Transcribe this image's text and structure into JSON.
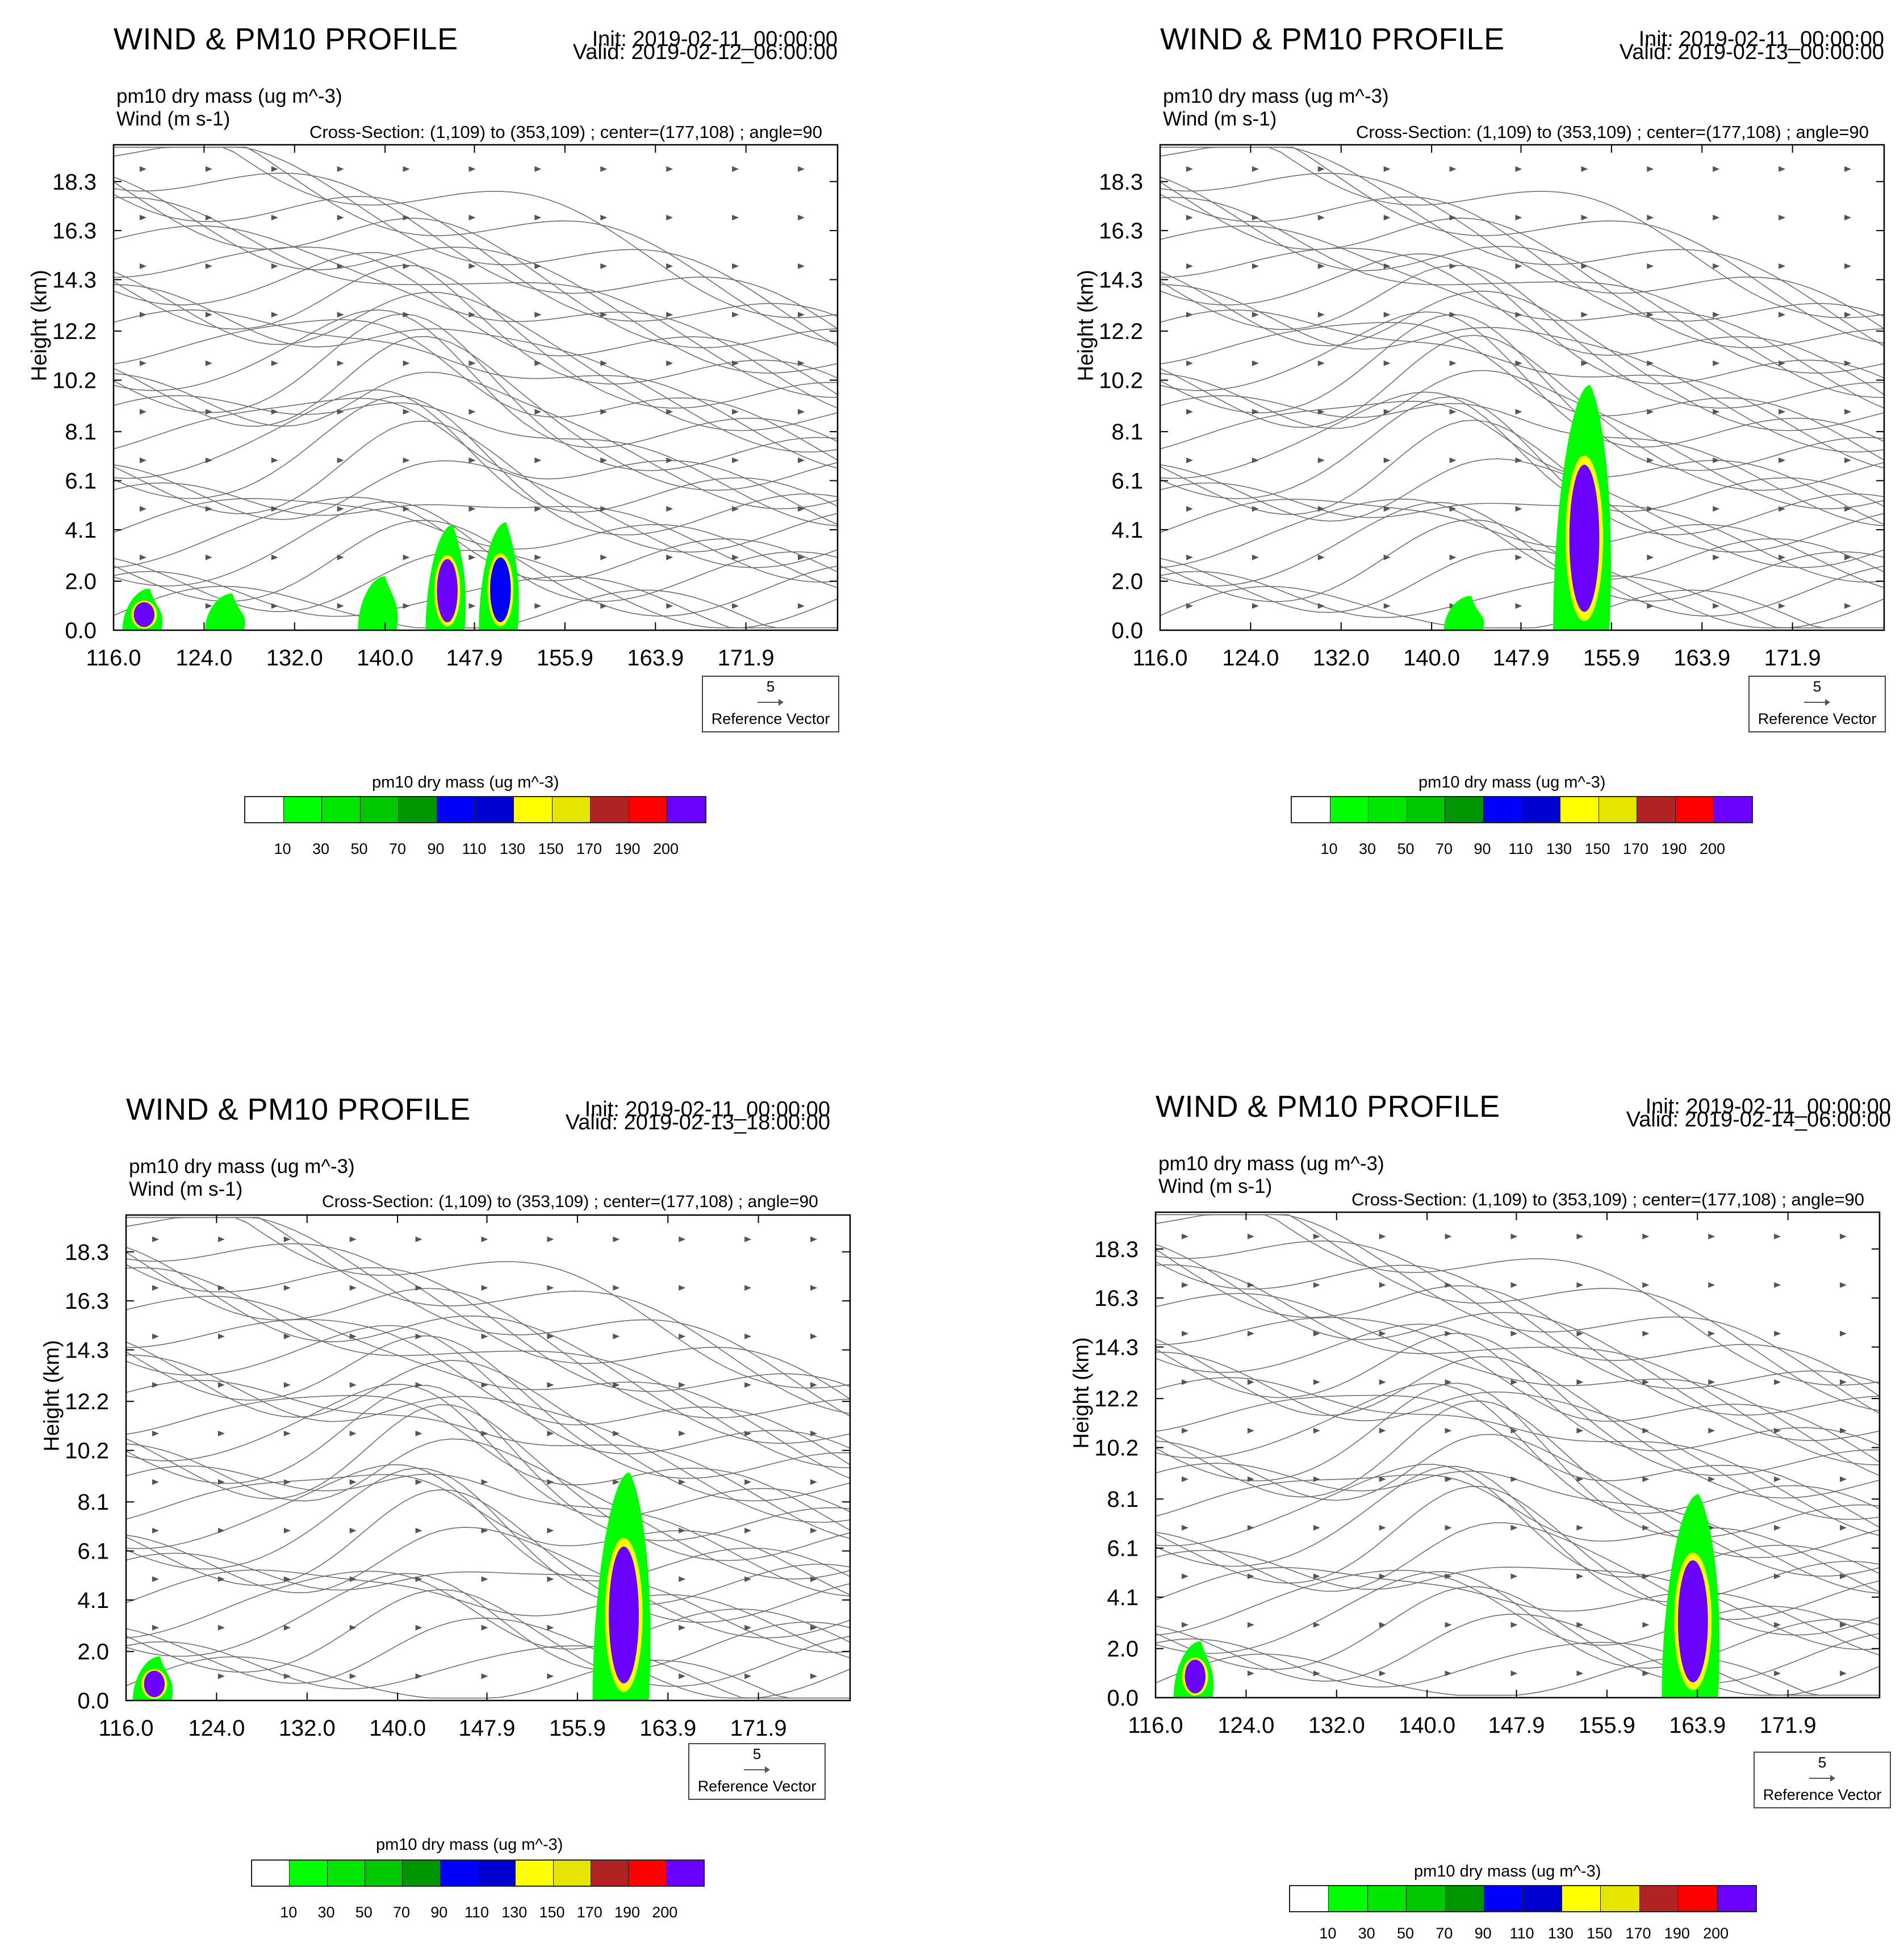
{
  "panels": [
    {
      "title": "WIND & PM10 PROFILE",
      "init": "Init: 2019-02-11_00:00:00",
      "valid": "Valid: 2019-02-12_06:00:00",
      "var1": "pm10 dry mass   (ug m^-3)",
      "var2": "Wind   (m s-1)",
      "cross_section": "Cross-Section: (1,109) to (353,109) ; center=(177,108) ; angle=90"
    },
    {
      "title": "WIND & PM10 PROFILE",
      "init": "Init: 2019-02-11_00:00:00",
      "valid": "Valid: 2019-02-13_00:00:00",
      "var1": "pm10 dry mass   (ug m^-3)",
      "var2": "Wind   (m s-1)",
      "cross_section": "Cross-Section: (1,109) to (353,109) ; center=(177,108) ; angle=90"
    },
    {
      "title": "WIND & PM10 PROFILE",
      "init": "Init: 2019-02-11_00:00:00",
      "valid": "Valid: 2019-02-13_18:00:00",
      "var1": "pm10 dry mass   (ug m^-3)",
      "var2": "Wind   (m s-1)",
      "cross_section": "Cross-Section: (1,109) to (353,109) ; center=(177,108) ; angle=90"
    },
    {
      "title": "WIND & PM10 PROFILE",
      "init": "Init: 2019-02-11_00:00:00",
      "valid": "Valid: 2019-02-14_06:00:00",
      "var1": "pm10 dry mass   (ug m^-3)",
      "var2": "Wind   (m s-1)",
      "cross_section": "Cross-Section: (1,109) to (353,109) ; center=(177,108) ; angle=90"
    }
  ],
  "common": {
    "ylabel": "Height (km)",
    "ref_vector_value": "5",
    "ref_vector_label": "Reference Vector",
    "colorbar_title": "pm10 dry mass  (ug m^-3)",
    "colorbar_levels": [
      "10",
      "30",
      "50",
      "70",
      "90",
      "110",
      "130",
      "150",
      "170",
      "190",
      "200"
    ],
    "colorbar_colors": [
      "#ffffff",
      "#00ff00",
      "#00e600",
      "#00c800",
      "#009600",
      "#0000ff",
      "#0000d2",
      "#ffff00",
      "#e6e600",
      "#b22222",
      "#ff0000",
      "#6a00ff"
    ]
  },
  "chart_data": [
    {
      "type": "contour+streamline",
      "title": "WIND & PM10 PROFILE",
      "valid": "2019-02-12_06:00:00",
      "xlabel": "",
      "ylabel": "Height (km)",
      "x_ticks": [
        "116.0",
        "124.0",
        "132.0",
        "140.0",
        "147.9",
        "155.9",
        "163.9",
        "171.9"
      ],
      "x_tick_values": [
        116.0,
        124.0,
        132.0,
        140.0,
        147.9,
        155.9,
        163.9,
        171.9
      ],
      "y_ticks": [
        "0.0",
        "2.0",
        "4.1",
        "6.1",
        "8.1",
        "10.2",
        "12.2",
        "14.3",
        "16.3",
        "18.3"
      ],
      "y_tick_values": [
        0.0,
        2.0,
        4.1,
        6.1,
        8.1,
        10.2,
        12.2,
        14.3,
        16.3,
        18.3
      ],
      "xlim": [
        116.0,
        180.0
      ],
      "ylim": [
        0.0,
        19.8
      ],
      "plumes": [
        {
          "lon": 118.7,
          "top_km": 1.7,
          "peak_ugm3": 200
        },
        {
          "lon": 126.0,
          "top_km": 1.5,
          "peak_ugm3": 30
        },
        {
          "lon": 139.5,
          "top_km": 2.2,
          "peak_ugm3": 30
        },
        {
          "lon": 145.5,
          "top_km": 4.3,
          "peak_ugm3": 200
        },
        {
          "lon": 150.2,
          "top_km": 4.4,
          "peak_ugm3": 110
        }
      ]
    },
    {
      "type": "contour+streamline",
      "title": "WIND & PM10 PROFILE",
      "valid": "2019-02-13_00:00:00",
      "xlabel": "",
      "ylabel": "Height (km)",
      "x_ticks": [
        "116.0",
        "124.0",
        "132.0",
        "140.0",
        "147.9",
        "155.9",
        "163.9",
        "171.9"
      ],
      "x_tick_values": [
        116.0,
        124.0,
        132.0,
        140.0,
        147.9,
        155.9,
        163.9,
        171.9
      ],
      "y_ticks": [
        "0.0",
        "2.0",
        "4.1",
        "6.1",
        "8.1",
        "10.2",
        "12.2",
        "14.3",
        "16.3",
        "18.3"
      ],
      "y_tick_values": [
        0.0,
        2.0,
        4.1,
        6.1,
        8.1,
        10.2,
        12.2,
        14.3,
        16.3,
        18.3
      ],
      "xlim": [
        116.0,
        180.0
      ],
      "ylim": [
        0.0,
        19.8
      ],
      "plumes": [
        {
          "lon": 143.0,
          "top_km": 1.4,
          "peak_ugm3": 30
        },
        {
          "lon": 153.5,
          "top_km": 10.0,
          "peak_ugm3": 200
        }
      ]
    },
    {
      "type": "contour+streamline",
      "title": "WIND & PM10 PROFILE",
      "valid": "2019-02-13_18:00:00",
      "xlabel": "",
      "ylabel": "Height (km)",
      "x_ticks": [
        "116.0",
        "124.0",
        "132.0",
        "140.0",
        "147.9",
        "155.9",
        "163.9",
        "171.9"
      ],
      "x_tick_values": [
        116.0,
        124.0,
        132.0,
        140.0,
        147.9,
        155.9,
        163.9,
        171.9
      ],
      "y_ticks": [
        "0.0",
        "2.0",
        "4.1",
        "6.1",
        "8.1",
        "10.2",
        "12.2",
        "14.3",
        "16.3",
        "18.3"
      ],
      "y_tick_values": [
        0.0,
        2.0,
        4.1,
        6.1,
        8.1,
        10.2,
        12.2,
        14.3,
        16.3,
        18.3
      ],
      "xlim": [
        116.0,
        180.0
      ],
      "ylim": [
        0.0,
        19.8
      ],
      "plumes": [
        {
          "lon": 118.5,
          "top_km": 1.8,
          "peak_ugm3": 200
        },
        {
          "lon": 160.0,
          "top_km": 9.3,
          "peak_ugm3": 200
        }
      ]
    },
    {
      "type": "contour+streamline",
      "title": "WIND & PM10 PROFILE",
      "valid": "2019-02-14_06:00:00",
      "xlabel": "",
      "ylabel": "Height (km)",
      "x_ticks": [
        "116.0",
        "124.0",
        "132.0",
        "140.0",
        "147.9",
        "155.9",
        "163.9",
        "171.9"
      ],
      "x_tick_values": [
        116.0,
        124.0,
        132.0,
        140.0,
        147.9,
        155.9,
        163.9,
        171.9
      ],
      "y_ticks": [
        "0.0",
        "2.0",
        "4.1",
        "6.1",
        "8.1",
        "10.2",
        "12.2",
        "14.3",
        "16.3",
        "18.3"
      ],
      "y_tick_values": [
        0.0,
        2.0,
        4.1,
        6.1,
        8.1,
        10.2,
        12.2,
        14.3,
        16.3,
        18.3
      ],
      "xlim": [
        116.0,
        180.0
      ],
      "ylim": [
        0.0,
        19.8
      ],
      "plumes": [
        {
          "lon": 119.5,
          "top_km": 2.3,
          "peak_ugm3": 200
        },
        {
          "lon": 163.5,
          "top_km": 8.3,
          "peak_ugm3": 200
        }
      ]
    }
  ]
}
